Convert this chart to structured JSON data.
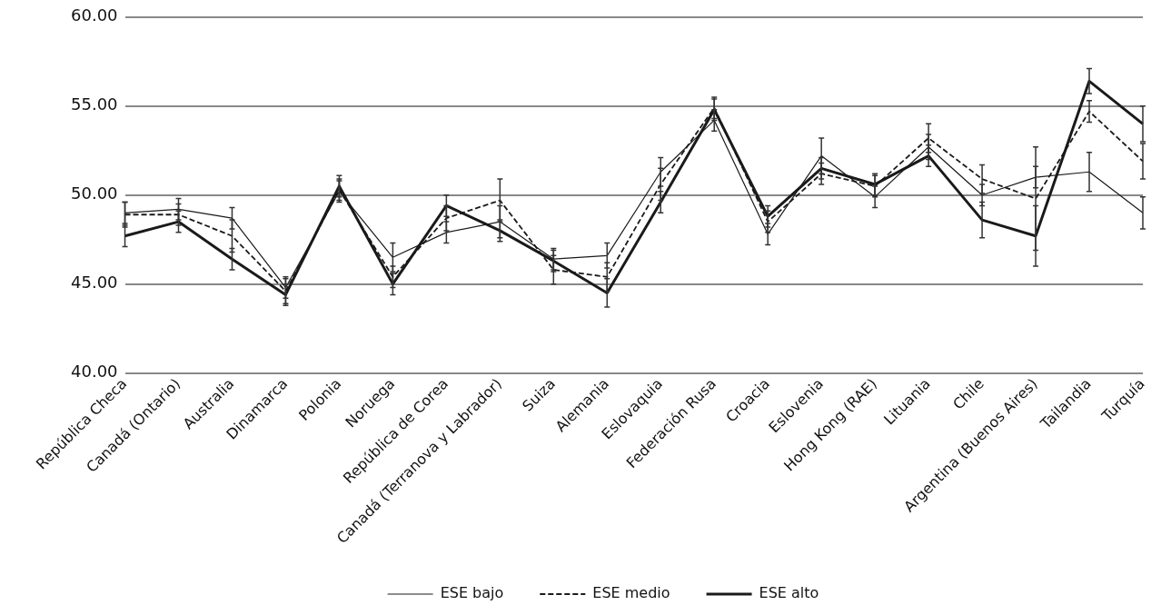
{
  "chart_data": {
    "type": "line",
    "categories": [
      "República Checa",
      "Canadá (Ontario)",
      "Australia",
      "Dinamarca",
      "Polonia",
      "Noruega",
      "República de Corea",
      "Canadá (Terranova y Labrador)",
      "Suiza",
      "Alemania",
      "Eslovaquia",
      "Federación Rusa",
      "Croacia",
      "Eslovenia",
      "Hong Kong (RAE)",
      "Lituania",
      "Chile",
      "Argentina (Buenos Aires)",
      "Tailandia",
      "Turquía"
    ],
    "series": [
      {
        "name": "ESE bajo",
        "color": "#1a1a1a",
        "line_style": "solid",
        "values": [
          49.0,
          49.2,
          48.7,
          44.8,
          50.2,
          46.5,
          47.9,
          48.5,
          46.4,
          46.6,
          51.3,
          54.2,
          47.8,
          52.2,
          49.9,
          52.7,
          50.0,
          51.0,
          51.3,
          49.0
        ],
        "errors": [
          0.6,
          0.6,
          0.6,
          0.6,
          0.6,
          0.8,
          0.6,
          0.9,
          0.6,
          0.7,
          0.8,
          0.6,
          0.6,
          1.0,
          0.6,
          0.7,
          0.6,
          0.6,
          1.1,
          0.9
        ]
      },
      {
        "name": "ESE medio",
        "color": "#1a1a1a",
        "line_style": "dashed",
        "values": [
          48.9,
          48.9,
          47.7,
          44.6,
          50.3,
          45.4,
          48.7,
          49.7,
          45.8,
          45.4,
          50.6,
          54.9,
          48.5,
          51.2,
          50.5,
          53.2,
          50.9,
          49.8,
          54.7,
          51.9
        ],
        "errors": [
          0.7,
          0.6,
          0.9,
          0.7,
          0.6,
          0.6,
          0.7,
          1.2,
          0.8,
          0.8,
          0.9,
          0.6,
          0.6,
          0.6,
          0.6,
          0.8,
          0.8,
          2.9,
          0.6,
          1.0
        ]
      },
      {
        "name": "ESE alto",
        "color": "#1a1a1a",
        "line_style": "solid",
        "values": [
          47.7,
          48.5,
          46.4,
          44.4,
          50.5,
          45.0,
          49.4,
          48.0,
          46.3,
          44.5,
          49.6,
          54.8,
          48.8,
          51.5,
          50.6,
          52.2,
          48.6,
          47.7,
          56.4,
          54.0
        ],
        "errors": [
          0.6,
          0.6,
          0.6,
          0.6,
          0.6,
          0.6,
          0.6,
          0.6,
          0.6,
          0.8,
          0.6,
          0.6,
          0.6,
          0.6,
          0.6,
          0.6,
          1.0,
          1.7,
          0.7,
          1.0
        ]
      }
    ],
    "ylim": [
      40,
      60
    ],
    "yticks": [
      {
        "value": 40,
        "label": "40.00"
      },
      {
        "value": 45,
        "label": "45.00"
      },
      {
        "value": 50,
        "label": "50.00"
      },
      {
        "value": 55,
        "label": "55.00"
      },
      {
        "value": 60,
        "label": "60.00"
      }
    ],
    "grid": "y",
    "legend": "bottom",
    "marker": "none"
  }
}
